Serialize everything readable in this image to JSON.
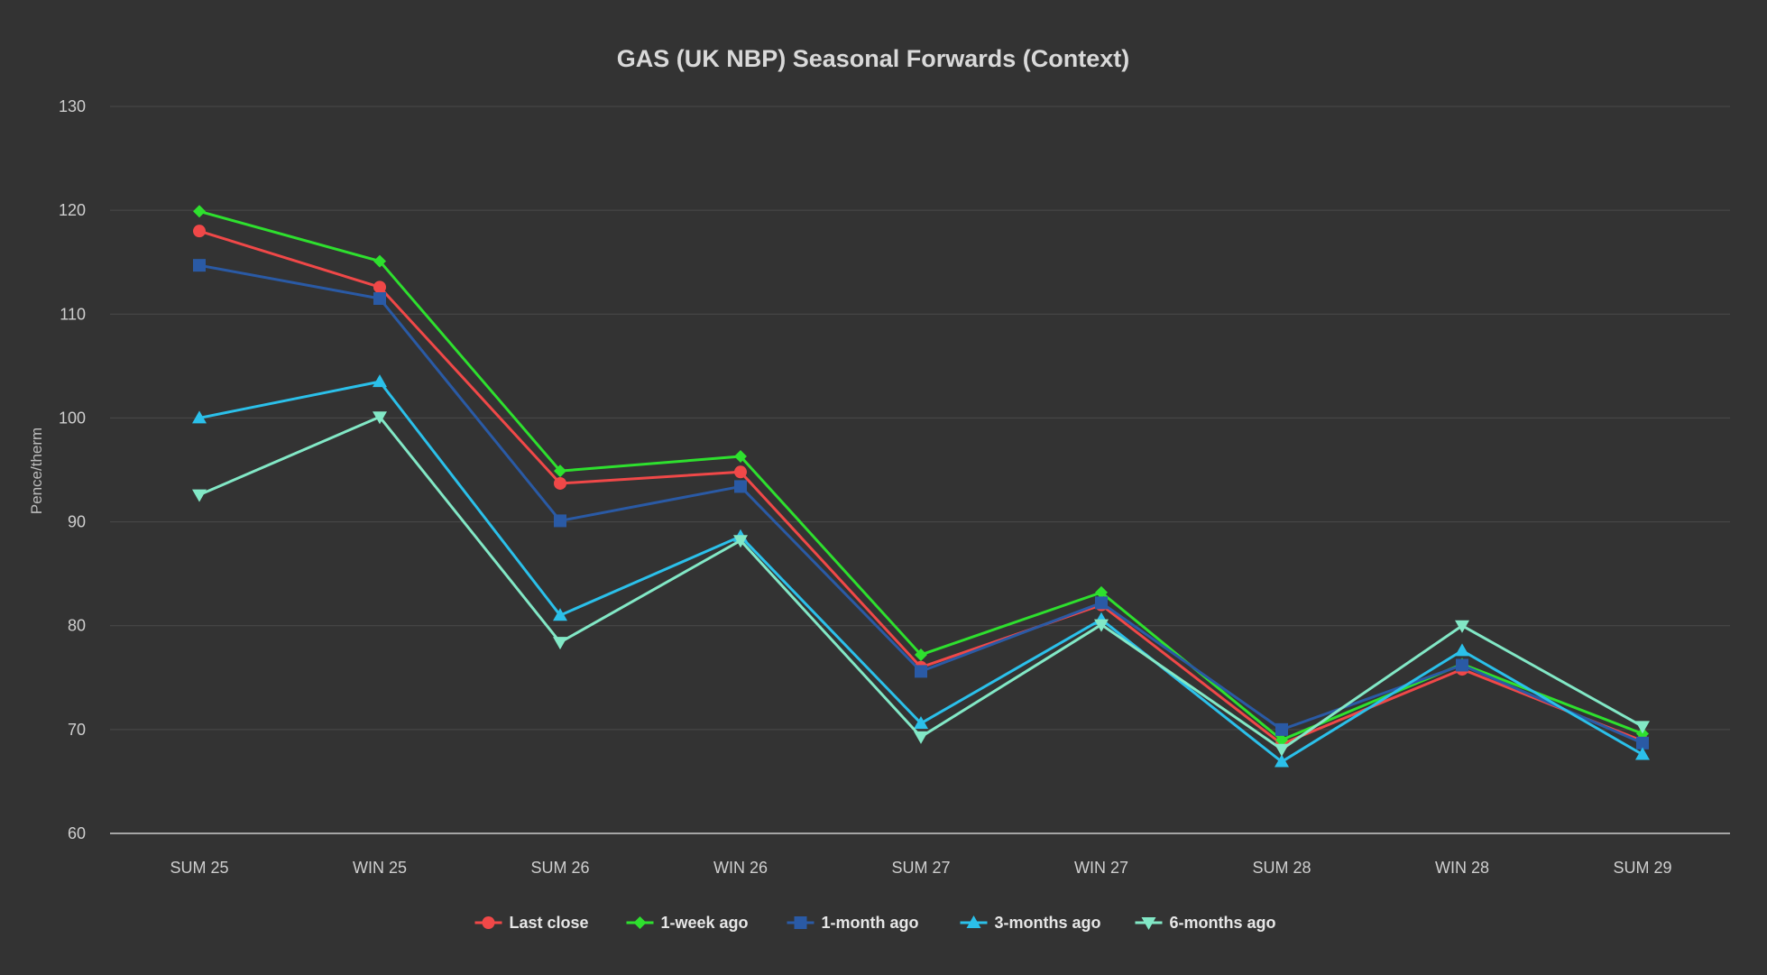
{
  "chart_data": {
    "type": "line",
    "title": "GAS (UK NBP) Seasonal Forwards (Context)",
    "xlabel": "",
    "ylabel": "Pence/therm",
    "ylim": [
      60,
      130
    ],
    "yticks": [
      60,
      70,
      80,
      90,
      100,
      110,
      120,
      130
    ],
    "grid": true,
    "legend_position": "bottom",
    "categories": [
      "SUM 25",
      "WIN 25",
      "SUM 26",
      "WIN 26",
      "SUM 27",
      "WIN 27",
      "SUM 28",
      "WIN 28",
      "SUM 29"
    ],
    "series": [
      {
        "name": "Last close",
        "color": "#f04848",
        "marker": "circle",
        "values": [
          118.0,
          112.6,
          93.7,
          94.8,
          76.0,
          82.0,
          68.6,
          75.8,
          68.9
        ]
      },
      {
        "name": "1-week ago",
        "color": "#2ee02e",
        "marker": "diamond",
        "values": [
          119.9,
          115.1,
          94.9,
          96.3,
          77.2,
          83.2,
          69.0,
          76.3,
          69.6
        ]
      },
      {
        "name": "1-month ago",
        "color": "#2a5aa5",
        "marker": "square",
        "values": [
          114.7,
          111.5,
          90.1,
          93.4,
          75.6,
          82.2,
          70.0,
          76.2,
          68.7
        ]
      },
      {
        "name": "3-months ago",
        "color": "#2bc0ea",
        "marker": "triangle-up",
        "values": [
          100.0,
          103.5,
          81.0,
          88.6,
          70.6,
          80.6,
          66.9,
          77.6,
          67.6
        ]
      },
      {
        "name": "6-months ago",
        "color": "#82e8c6",
        "marker": "triangle-down",
        "values": [
          92.6,
          100.1,
          78.4,
          88.2,
          69.3,
          80.1,
          68.1,
          80.0,
          70.3
        ]
      }
    ]
  }
}
